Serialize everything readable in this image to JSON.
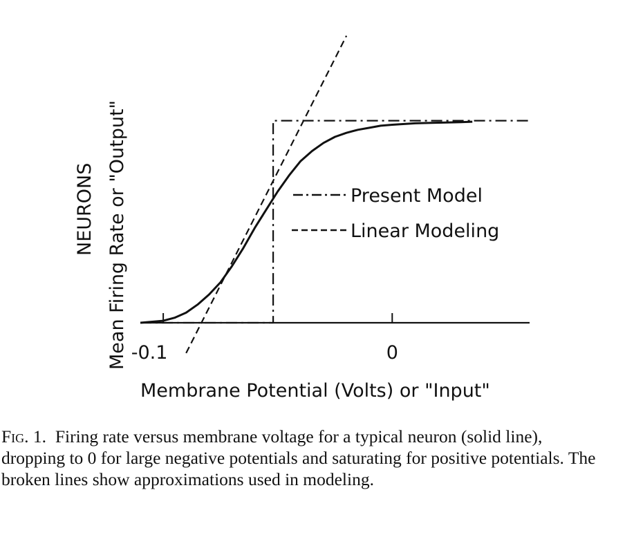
{
  "chart_data": {
    "type": "line",
    "title": "",
    "ylabel_line1": "NEURONS",
    "ylabel_line2": "Mean Firing Rate or \"Output\"",
    "xlabel": "Membrane Potential (Volts) or \"Input\"",
    "x_ticks": [
      {
        "value": -0.1,
        "label": "-0.1"
      },
      {
        "value": 0,
        "label": "0"
      }
    ],
    "xlim": [
      -0.11,
      0.06
    ],
    "ylim": [
      0,
      1.05
    ],
    "threshold": -0.052,
    "series": [
      {
        "name": "Neuron firing rate",
        "style": "solid",
        "x": [
          -0.11,
          -0.1,
          -0.095,
          -0.09,
          -0.085,
          -0.08,
          -0.075,
          -0.07,
          -0.065,
          -0.06,
          -0.055,
          -0.05,
          -0.045,
          -0.04,
          -0.035,
          -0.03,
          -0.025,
          -0.02,
          -0.015,
          -0.01,
          -0.005,
          0,
          0.01,
          0.02,
          0.03,
          0.035
        ],
        "y": [
          0.0,
          0.01,
          0.025,
          0.05,
          0.09,
          0.14,
          0.2,
          0.28,
          0.37,
          0.47,
          0.56,
          0.65,
          0.73,
          0.8,
          0.85,
          0.89,
          0.92,
          0.94,
          0.955,
          0.965,
          0.975,
          0.98,
          0.987,
          0.99,
          0.993,
          0.995
        ]
      },
      {
        "name": "Present Model",
        "style": "dash-dot",
        "x": [
          -0.11,
          -0.052,
          -0.052,
          0.06
        ],
        "y": [
          0,
          0,
          1,
          1
        ]
      },
      {
        "name": "Linear Modeling",
        "style": "dashed",
        "x": [
          -0.09,
          -0.02
        ],
        "y": [
          -0.15,
          1.42
        ]
      }
    ],
    "legend": [
      {
        "label": "Present Model",
        "style": "dash-dot"
      },
      {
        "label": "Linear Modeling",
        "style": "dashed"
      }
    ],
    "legend_position": "center-right"
  },
  "caption": {
    "label": "Fig. 1.",
    "text": "Firing rate versus membrane voltage for a typical neuron (solid line), dropping to 0 for large negative potentials and saturating for positive potentials. The broken lines show approximations used in modeling."
  }
}
